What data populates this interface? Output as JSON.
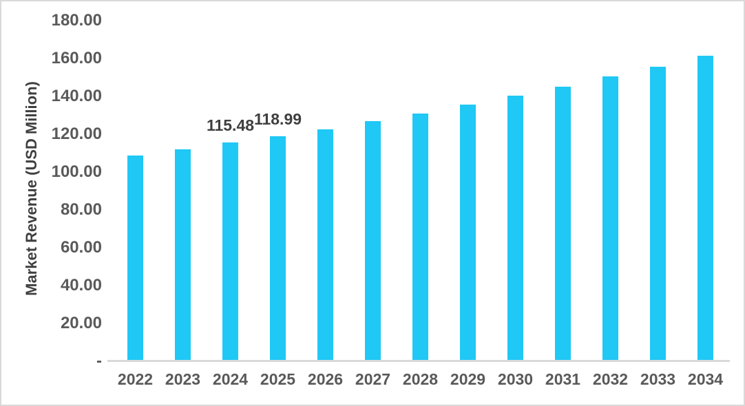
{
  "chart_data": {
    "type": "bar",
    "categories": [
      "2022",
      "2023",
      "2024",
      "2025",
      "2026",
      "2027",
      "2028",
      "2029",
      "2030",
      "2031",
      "2032",
      "2033",
      "2034"
    ],
    "values": [
      108.7,
      112.1,
      115.48,
      118.99,
      122.7,
      126.9,
      131.0,
      135.5,
      140.2,
      145.1,
      150.5,
      155.8,
      161.3
    ],
    "annotations": [
      {
        "category": "2024",
        "text": "115.48"
      },
      {
        "category": "2025",
        "text": "118.99"
      }
    ],
    "title": "",
    "xlabel": "",
    "ylabel": "Market Revenue (USD Million)",
    "ylim": [
      0,
      180
    ],
    "ytick_step": 20,
    "ytick_labels": [
      "-",
      "20.00",
      "40.00",
      "60.00",
      "80.00",
      "100.00",
      "120.00",
      "140.00",
      "160.00",
      "180.00"
    ],
    "grid": false,
    "legend": "none",
    "colors": {
      "bar": "#1fc8f5",
      "axis_line": "#d9d9d9",
      "tick_label": "#595959",
      "data_label": "#3f3f3f",
      "y_title": "#3f3f3f",
      "background": "#ffffff",
      "frame_border": "#d9d9d9"
    }
  }
}
